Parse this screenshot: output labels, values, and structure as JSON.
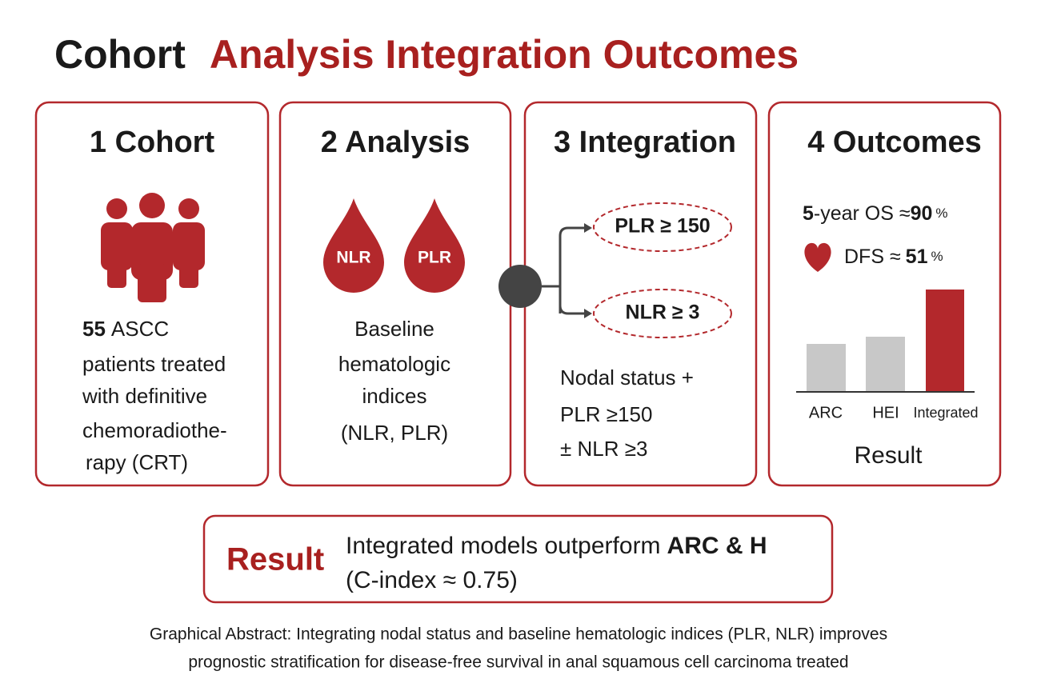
{
  "title": {
    "lead": "Cohort",
    "rest": "Analysis Integration Outcomes"
  },
  "panels": [
    {
      "heading": "1 Cohort",
      "count": 55,
      "lines": [
        "ASCC",
        "patients treated",
        "with definitive",
        "chemoradiothe-",
        "rapy (CRT)"
      ]
    },
    {
      "heading": "2 Analysis",
      "drops": [
        "NLR",
        "PLR"
      ],
      "lines": [
        "Baseline",
        "hematologic",
        "indices",
        "(NLR, PLR)"
      ]
    },
    {
      "heading": "3 Integration",
      "branches": [
        "PLR ≥ 150",
        "NLR ≥ 3"
      ],
      "lines": [
        "Nodal status +",
        "PLR ≥150",
        "± NLR ≥3"
      ]
    },
    {
      "heading": "4 Outcomes",
      "os": {
        "lead": "5",
        "label": "-year OS ≈",
        "value": 90,
        "unit": "%"
      },
      "dfs": {
        "label": "DFS ≈",
        "value": 51,
        "unit": "%"
      },
      "bars": [
        "ARC",
        "HEI",
        "Integrated"
      ],
      "caption": "Result"
    }
  ],
  "result": {
    "label": "Result",
    "line1": "Integrated models outperform",
    "line1_bold": "ARC & H",
    "line2": "(C-index ≈ 0.75)"
  },
  "footer": [
    "Graphical Abstract: Integrating nodal status and baseline hematologic indices (PLR, NLR) improves",
    "prognostic stratification for disease-free survival in anal squamous cell carcinoma treated"
  ]
}
